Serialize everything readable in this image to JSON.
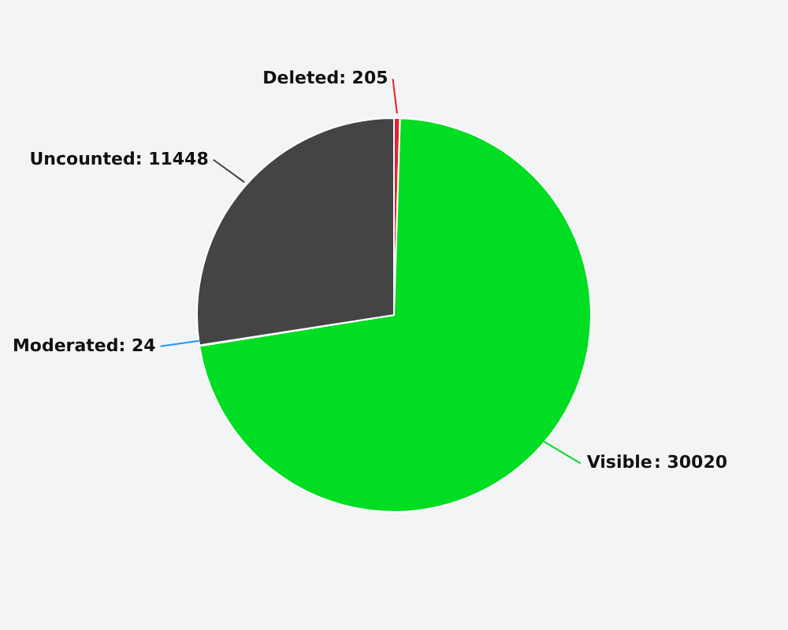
{
  "chart_data": {
    "type": "pie",
    "categories": [
      "Deleted",
      "Visible",
      "Moderated",
      "Uncounted"
    ],
    "values": [
      205,
      30020,
      24,
      11448
    ],
    "colors": [
      "#e8202a",
      "#00dd22",
      "#2196f3",
      "#444444"
    ],
    "value_labels": [
      ": 205",
      ": 30020",
      ": 24",
      ": 11448"
    ]
  }
}
